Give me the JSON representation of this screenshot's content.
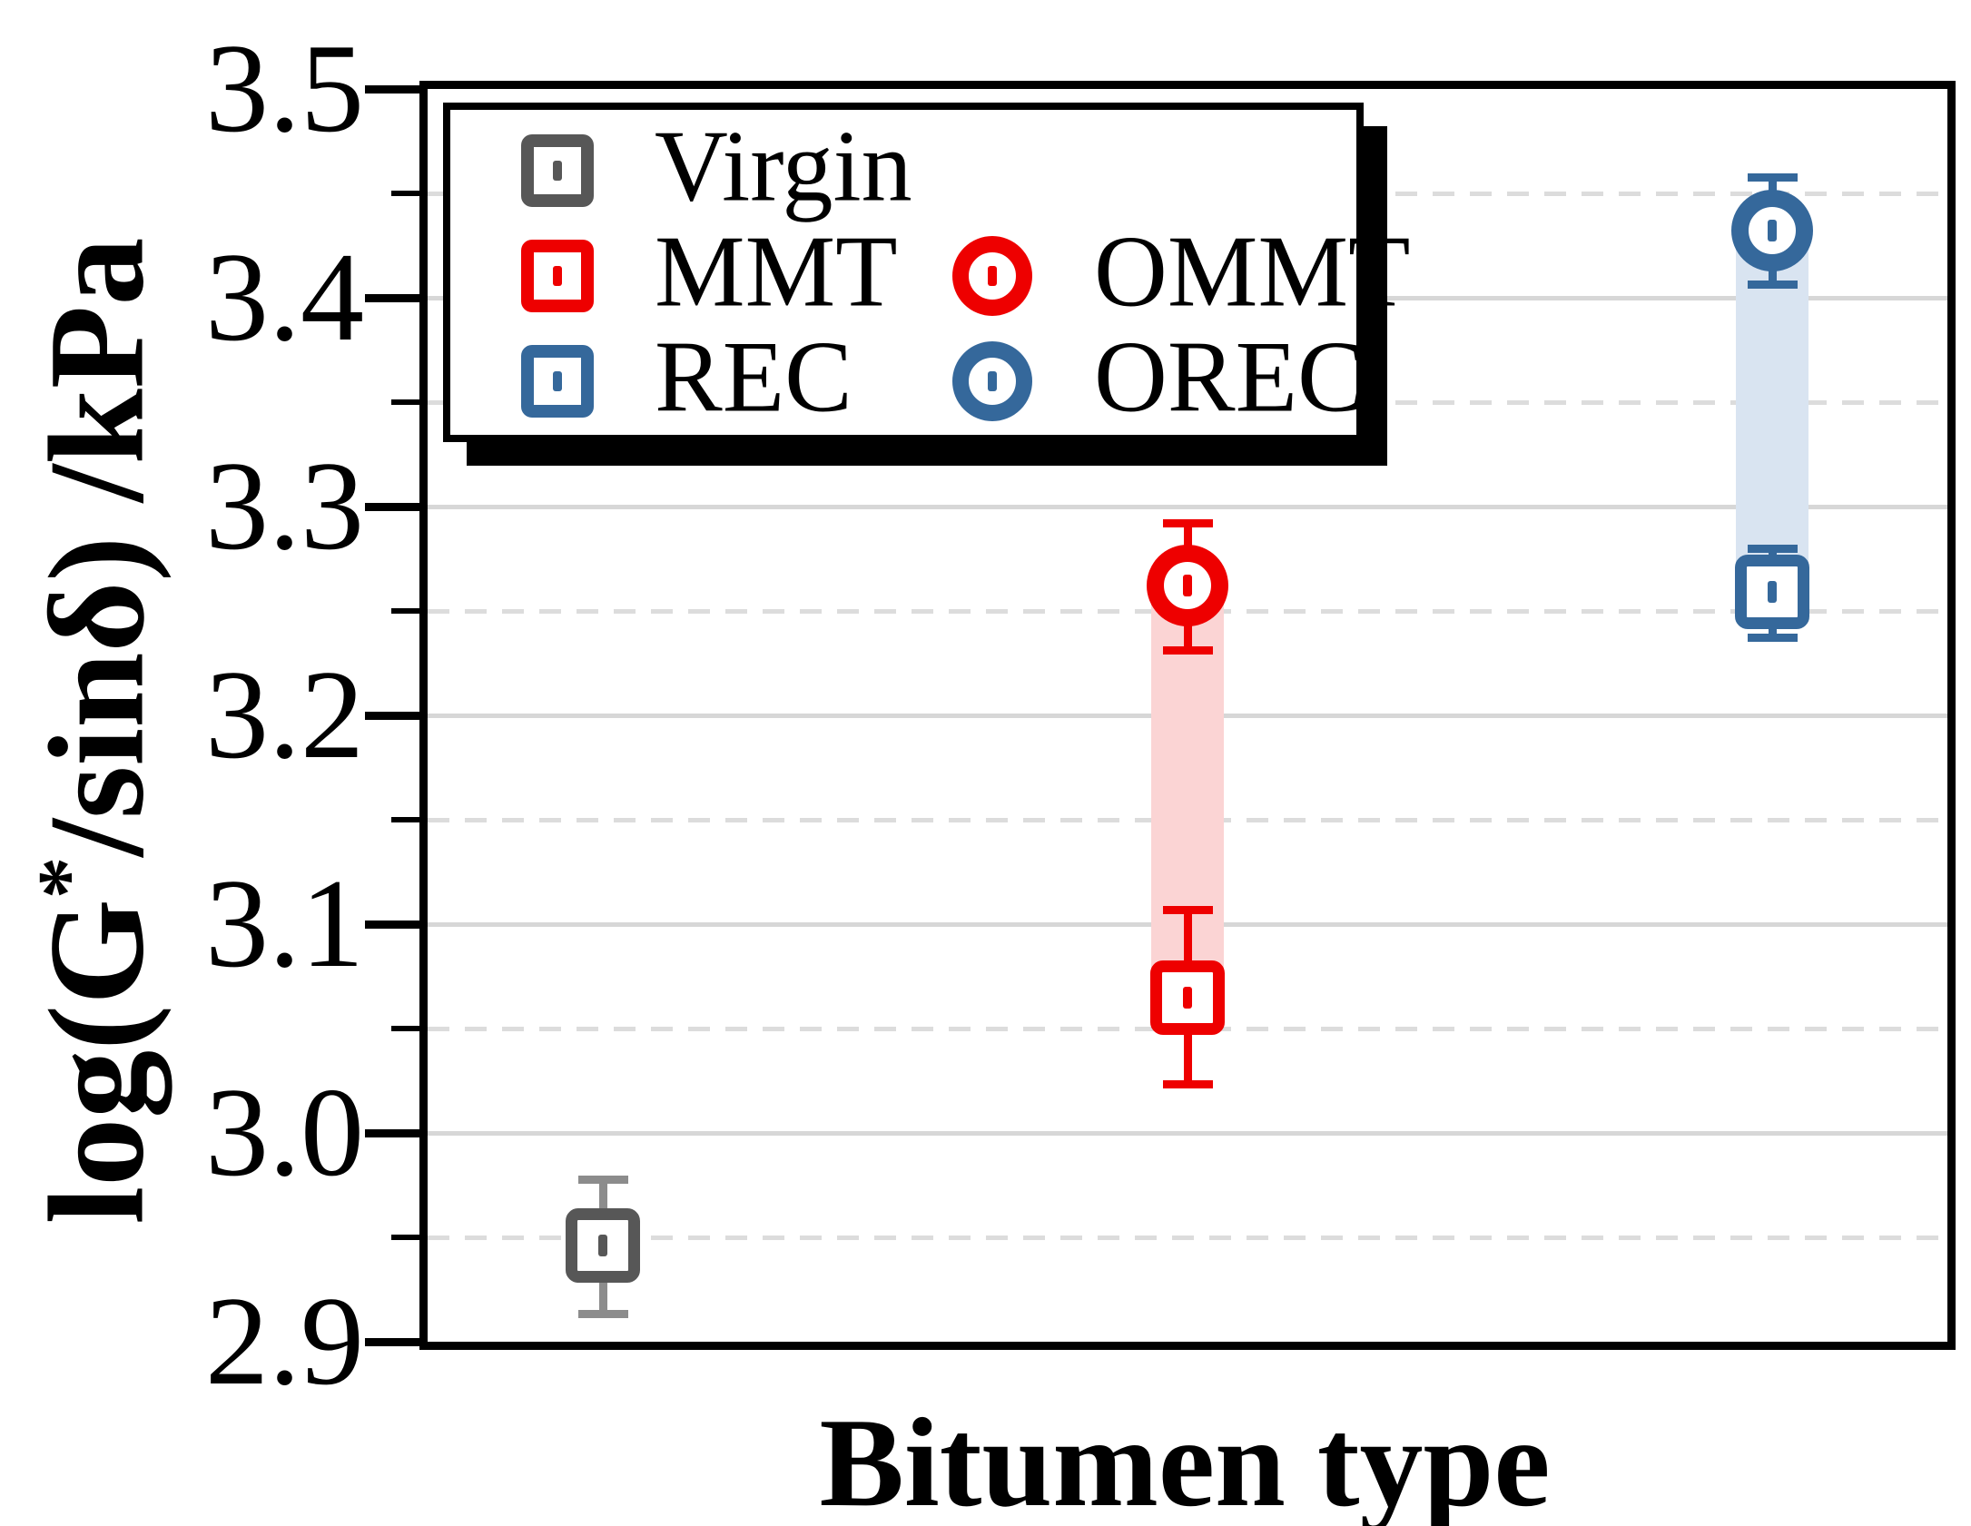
{
  "chart_data": {
    "type": "scatter",
    "title": "",
    "xlabel": "Bitumen type",
    "ylabel": "log(G*/sinδ) /kPa",
    "ylabel_parts": {
      "before": "log(G",
      "sup": "*",
      "after": "/sinδ) /kPa"
    },
    "xlim": [
      0.7,
      3.3
    ],
    "ylim": [
      2.9,
      3.5
    ],
    "y_major_ticks": [
      {
        "value": 3.5,
        "label": "3.5"
      },
      {
        "value": 3.4,
        "label": "3.4"
      },
      {
        "value": 3.3,
        "label": "3.3"
      },
      {
        "value": 3.2,
        "label": "3.2"
      },
      {
        "value": 3.1,
        "label": "3.1"
      },
      {
        "value": 3.0,
        "label": "3.0"
      },
      {
        "value": 2.9,
        "label": "2.9"
      }
    ],
    "y_minor_ticks": [
      2.95,
      3.05,
      3.15,
      3.25,
      3.35,
      3.45
    ],
    "grid": {
      "major_style": "solid",
      "minor_style": "dashed",
      "major_color": "#d7d7d7",
      "minor_color": "#dcdcdc"
    },
    "series": [
      {
        "name": "Virgin",
        "marker": "square",
        "color": "#575757",
        "error_color": "#8c8c8c",
        "x": 1,
        "y": 2.946,
        "y_err_up": 0.032,
        "y_err_down": 0.033
      },
      {
        "name": "MMT",
        "marker": "square",
        "color": "#ee0000",
        "error_color": "#ee0000",
        "x": 2,
        "y": 3.065,
        "y_err_up": 0.042,
        "y_err_down": 0.042
      },
      {
        "name": "OMMT",
        "marker": "circle",
        "color": "#ee0000",
        "error_color": "#ee0000",
        "x": 2,
        "y": 3.262,
        "y_err_up": 0.03,
        "y_err_down": 0.031
      },
      {
        "name": "REC",
        "marker": "square",
        "color": "#35689b",
        "error_color": "#35689b",
        "x": 3,
        "y": 3.259,
        "y_err_up": 0.021,
        "y_err_down": 0.022
      },
      {
        "name": "OREC",
        "marker": "circle",
        "color": "#35689b",
        "error_color": "#35689b",
        "x": 3,
        "y": 3.432,
        "y_err_up": 0.026,
        "y_err_down": 0.026
      }
    ],
    "bands": [
      {
        "x": 2,
        "from": 3.065,
        "to": 3.262,
        "color": "#fbd4d4"
      },
      {
        "x": 3,
        "from": 3.259,
        "to": 3.432,
        "color": "#d9e4f1"
      }
    ],
    "legend": {
      "items": [
        {
          "label": "Virgin",
          "marker": "square",
          "color": "#575757",
          "row": 0,
          "col": 0
        },
        {
          "label": "MMT",
          "marker": "square",
          "color": "#ee0000",
          "row": 1,
          "col": 0
        },
        {
          "label": "OMMT",
          "marker": "circle",
          "color": "#ee0000",
          "row": 1,
          "col": 1
        },
        {
          "label": "REC",
          "marker": "square",
          "color": "#35689b",
          "row": 2,
          "col": 0
        },
        {
          "label": "OREC",
          "marker": "circle",
          "color": "#35689b",
          "row": 2,
          "col": 1
        }
      ]
    },
    "colors": {
      "axis": "#000000",
      "background": "#ffffff",
      "band_red": "#fbd4d4",
      "band_blue": "#d9e4f1"
    }
  }
}
